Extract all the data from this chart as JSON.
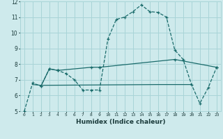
{
  "xlabel": "Humidex (Indice chaleur)",
  "bg_color": "#ceeaec",
  "grid_color": "#a8d4d7",
  "line_color": "#1a6b6b",
  "xlim": [
    -0.5,
    23.5
  ],
  "ylim": [
    5,
    12
  ],
  "yticks": [
    5,
    6,
    7,
    8,
    9,
    10,
    11,
    12
  ],
  "xticks": [
    0,
    1,
    2,
    3,
    4,
    5,
    6,
    7,
    8,
    9,
    10,
    11,
    12,
    13,
    14,
    15,
    16,
    17,
    18,
    19,
    20,
    21,
    22,
    23
  ],
  "curve1_x": [
    0,
    1,
    2,
    3,
    4,
    5,
    6,
    7,
    8,
    9,
    10,
    11,
    12,
    13,
    14,
    15,
    16,
    17,
    18,
    19,
    20,
    21,
    22,
    23
  ],
  "curve1_y": [
    5.0,
    6.8,
    6.6,
    7.7,
    7.6,
    7.4,
    7.0,
    6.35,
    6.35,
    6.35,
    9.6,
    10.85,
    11.0,
    11.35,
    11.78,
    11.35,
    11.3,
    11.0,
    8.9,
    8.3,
    6.7,
    5.5,
    6.5,
    7.8
  ],
  "curve2_x": [
    2,
    3,
    4,
    8,
    9,
    18,
    23
  ],
  "curve2_y": [
    6.6,
    7.7,
    7.6,
    7.8,
    7.8,
    8.3,
    7.8
  ],
  "curve3_x": [
    1,
    2,
    16,
    20
  ],
  "curve3_y": [
    6.7,
    6.65,
    6.7,
    6.7
  ]
}
